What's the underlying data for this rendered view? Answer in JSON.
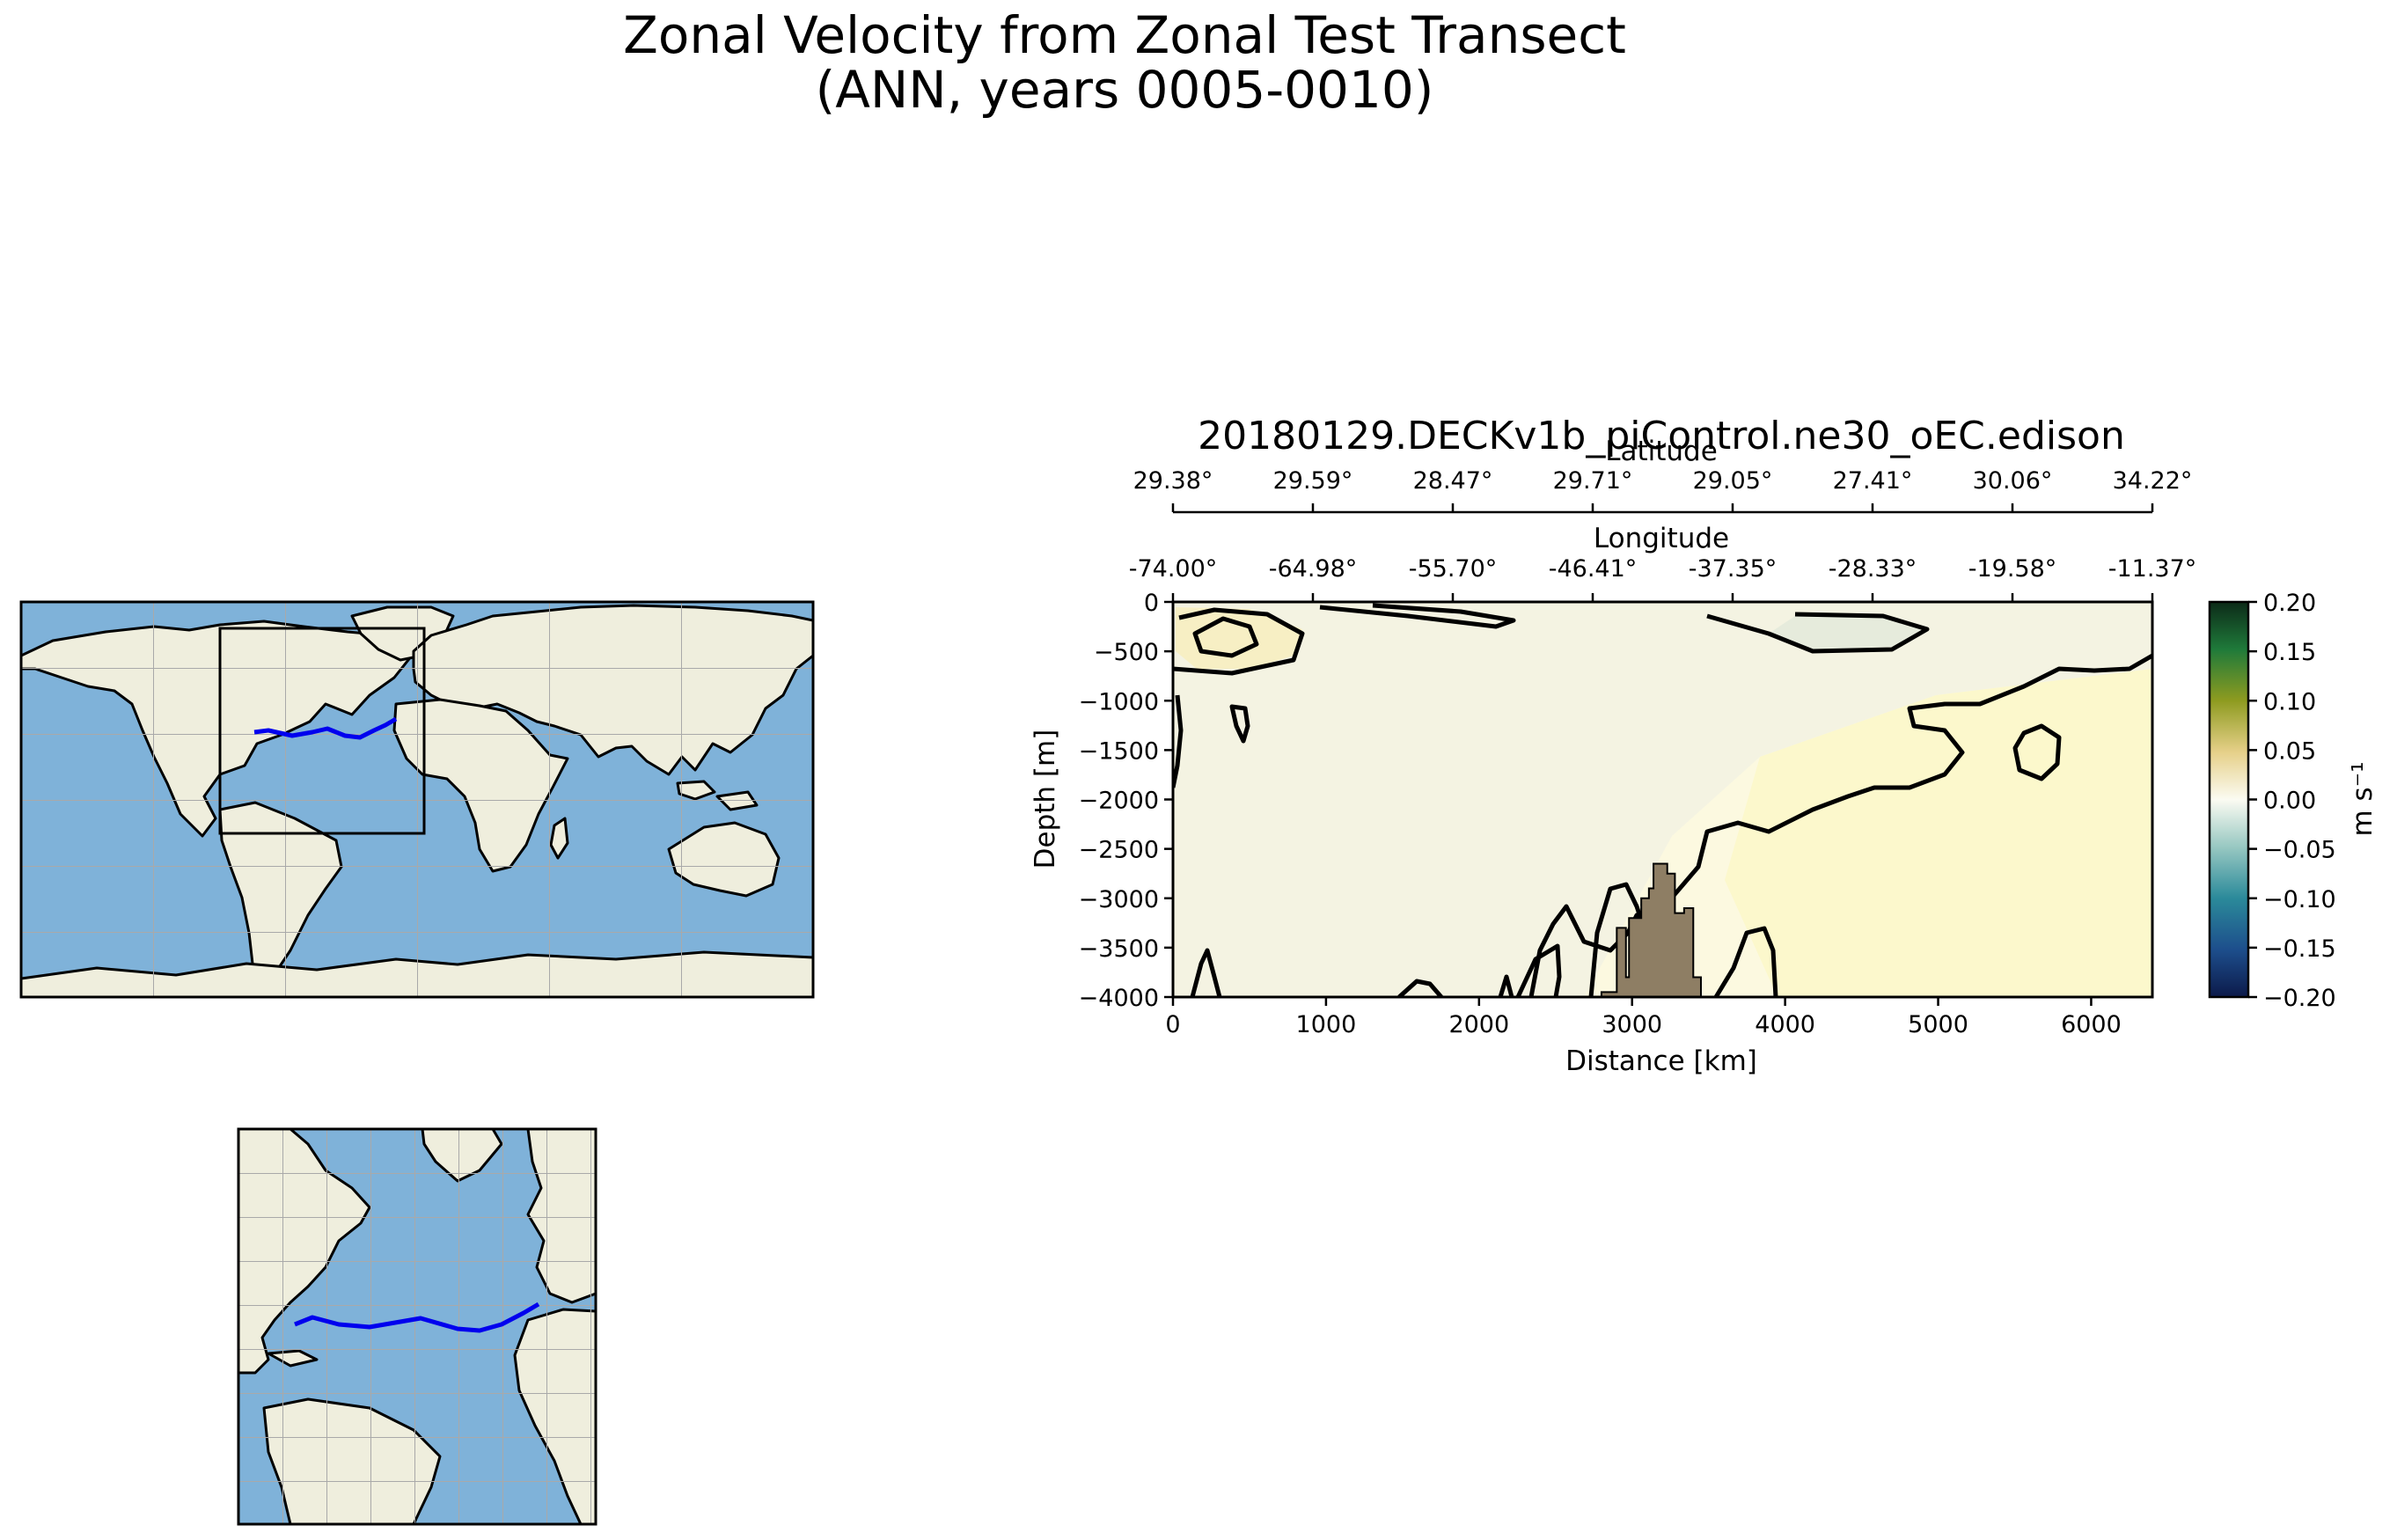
{
  "figure": {
    "title_line1": "Zonal Velocity from Zonal Test Transect",
    "title_line2": "(ANN, years 0005-0010)"
  },
  "colors": {
    "transect_line": "#0000ee",
    "ocean": "#7fb2d9",
    "land": "#efeedd",
    "bathymetry": "#8e7e64",
    "contour": "#000000"
  },
  "chart_data": {
    "type": "heatmap",
    "title": "20180129.DECKv1b_piControl.ne30_oEC.edison",
    "xlabel": "Distance [km]",
    "ylabel": "Depth [m]",
    "xlim": [
      0,
      6400
    ],
    "ylim": [
      -4000,
      0
    ],
    "x_ticks": [
      0,
      1000,
      2000,
      3000,
      4000,
      5000,
      6000
    ],
    "y_ticks": [
      0,
      -500,
      -1000,
      -1500,
      -2000,
      -2500,
      -3000,
      -3500,
      -4000
    ],
    "secondary_axes": [
      {
        "label": "Longitude",
        "ticks": [
          "-74.00°",
          "-64.98°",
          "-55.70°",
          "-46.41°",
          "-37.35°",
          "-28.33°",
          "-19.58°",
          "-11.37°"
        ]
      },
      {
        "label": "Latitude",
        "ticks": [
          "29.38°",
          "29.59°",
          "28.47°",
          "29.71°",
          "29.05°",
          "27.41°",
          "30.06°",
          "34.22°"
        ]
      }
    ],
    "colorbar": {
      "label": "m s⁻¹",
      "range": [
        -0.2,
        0.2
      ],
      "ticks": [
        "0.20",
        "0.15",
        "0.10",
        "0.05",
        "0.00",
        "−0.05",
        "−0.10",
        "−0.15",
        "−0.20"
      ]
    },
    "contour_levels": [
      0.0
    ],
    "bathymetry": [
      {
        "x": 2680,
        "depth": -4000
      },
      {
        "x": 2800,
        "depth": -3950
      },
      {
        "x": 2900,
        "depth": -3300
      },
      {
        "x": 2960,
        "depth": -3800
      },
      {
        "x": 2980,
        "depth": -3200
      },
      {
        "x": 3060,
        "depth": -3000
      },
      {
        "x": 3110,
        "depth": -2900
      },
      {
        "x": 3140,
        "depth": -2650
      },
      {
        "x": 3230,
        "depth": -2750
      },
      {
        "x": 3280,
        "depth": -3150
      },
      {
        "x": 3340,
        "depth": -3100
      },
      {
        "x": 3400,
        "depth": -3800
      },
      {
        "x": 3450,
        "depth": -4000
      }
    ]
  },
  "maps": {
    "global_map": {
      "name": "global"
    },
    "inset_map": {
      "name": "north-atlantic"
    }
  }
}
